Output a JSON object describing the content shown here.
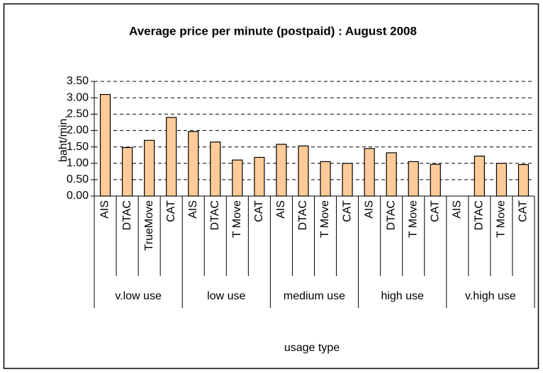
{
  "chart_data": {
    "type": "bar",
    "title": "Average price per minute (postpaid) : August 2008",
    "y_label": "baht/min.",
    "x_label": "usage type",
    "categories": [
      "AIS",
      "DTAC",
      "TrueMove",
      "CAT",
      "AIS",
      "DTAC",
      "T Move",
      "CAT",
      "AIS",
      "DTAC",
      "T Move",
      "CAT",
      "AIS",
      "DTAC",
      "T Move",
      "CAT",
      "AIS",
      "DTAC",
      "T Move",
      "CAT"
    ],
    "groups": [
      "v.low use",
      "low use",
      "medium use",
      "high use",
      "v.high use"
    ],
    "values": [
      3.1,
      1.48,
      1.7,
      2.4,
      1.97,
      1.65,
      1.1,
      1.18,
      1.58,
      1.53,
      1.05,
      1.0,
      1.45,
      1.32,
      1.05,
      0.97,
      null,
      1.22,
      1.0,
      0.96
    ],
    "color": "#ffcc99",
    "ylim": [
      0,
      3.5
    ],
    "yticks": [
      {
        "value": 0,
        "label": "0.00"
      },
      {
        "value": 0.5,
        "label": "0.50"
      },
      {
        "value": 1,
        "label": "1.00"
      },
      {
        "value": 1.5,
        "label": "1.50"
      },
      {
        "value": 2,
        "label": "2.00"
      },
      {
        "value": 2.5,
        "label": "2.50"
      },
      {
        "value": 3,
        "label": "3.00"
      },
      {
        "value": 3.5,
        "label": "3.50"
      }
    ],
    "grid": true
  }
}
